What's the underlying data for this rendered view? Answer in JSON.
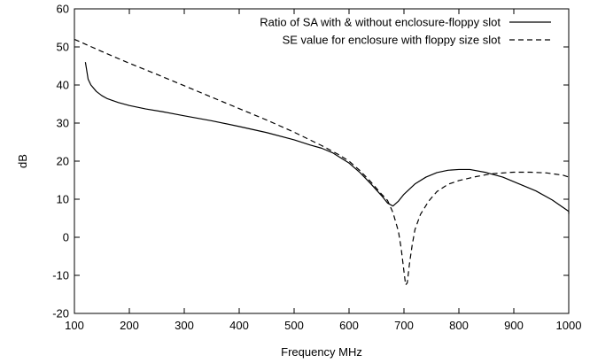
{
  "chart_data": {
    "type": "line",
    "title": "",
    "xlabel": "Frequency MHz",
    "ylabel": "dB",
    "xlim": [
      100,
      1000
    ],
    "ylim": [
      -20,
      60
    ],
    "x_ticks": [
      100,
      200,
      300,
      400,
      500,
      600,
      700,
      800,
      900,
      1000
    ],
    "y_ticks": [
      -20,
      -10,
      0,
      10,
      20,
      30,
      40,
      50,
      60
    ],
    "grid": false,
    "legend_position": "top-right",
    "series": [
      {
        "name": "Ratio of SA with & without enclosure-floppy slot",
        "style": "solid",
        "color": "#000000",
        "points": [
          [
            120,
            46
          ],
          [
            125,
            41.5
          ],
          [
            130,
            40
          ],
          [
            140,
            38.3
          ],
          [
            150,
            37.2
          ],
          [
            160,
            36.4
          ],
          [
            180,
            35.4
          ],
          [
            200,
            34.6
          ],
          [
            230,
            33.7
          ],
          [
            260,
            33.0
          ],
          [
            300,
            31.9
          ],
          [
            350,
            30.6
          ],
          [
            400,
            29.1
          ],
          [
            450,
            27.5
          ],
          [
            500,
            25.6
          ],
          [
            530,
            24.2
          ],
          [
            550,
            23.4
          ],
          [
            570,
            22.2
          ],
          [
            600,
            19.5
          ],
          [
            620,
            17.0
          ],
          [
            640,
            14.0
          ],
          [
            660,
            10.8
          ],
          [
            670,
            9.0
          ],
          [
            680,
            8.2
          ],
          [
            690,
            9.5
          ],
          [
            700,
            11.3
          ],
          [
            720,
            14.0
          ],
          [
            740,
            15.8
          ],
          [
            760,
            17.0
          ],
          [
            780,
            17.6
          ],
          [
            800,
            17.8
          ],
          [
            820,
            17.8
          ],
          [
            850,
            17.0
          ],
          [
            880,
            15.8
          ],
          [
            910,
            14.0
          ],
          [
            940,
            12.2
          ],
          [
            970,
            9.8
          ],
          [
            1000,
            6.8
          ],
          [
            1010,
            6.2
          ]
        ]
      },
      {
        "name": "SE value for enclosure with floppy size slot",
        "style": "dashed",
        "color": "#000000",
        "points": [
          [
            100,
            52
          ],
          [
            150,
            48.8
          ],
          [
            200,
            45.7
          ],
          [
            250,
            42.8
          ],
          [
            300,
            39.8
          ],
          [
            350,
            36.8
          ],
          [
            400,
            33.8
          ],
          [
            450,
            30.8
          ],
          [
            500,
            27.6
          ],
          [
            550,
            24.1
          ],
          [
            580,
            21.8
          ],
          [
            600,
            20.0
          ],
          [
            620,
            17.5
          ],
          [
            640,
            14.5
          ],
          [
            660,
            11.2
          ],
          [
            670,
            9.7
          ],
          [
            680,
            6.5
          ],
          [
            690,
            1.5
          ],
          [
            695,
            -3.0
          ],
          [
            700,
            -9.0
          ],
          [
            703,
            -12.5
          ],
          [
            706,
            -12.0
          ],
          [
            710,
            -7.0
          ],
          [
            715,
            -2.0
          ],
          [
            720,
            2.0
          ],
          [
            730,
            6.0
          ],
          [
            745,
            9.5
          ],
          [
            760,
            12.0
          ],
          [
            780,
            13.9
          ],
          [
            800,
            14.9
          ],
          [
            830,
            15.9
          ],
          [
            860,
            16.7
          ],
          [
            900,
            17.1
          ],
          [
            930,
            17.1
          ],
          [
            960,
            16.9
          ],
          [
            990,
            16.3
          ],
          [
            1010,
            15.8
          ]
        ]
      }
    ]
  }
}
